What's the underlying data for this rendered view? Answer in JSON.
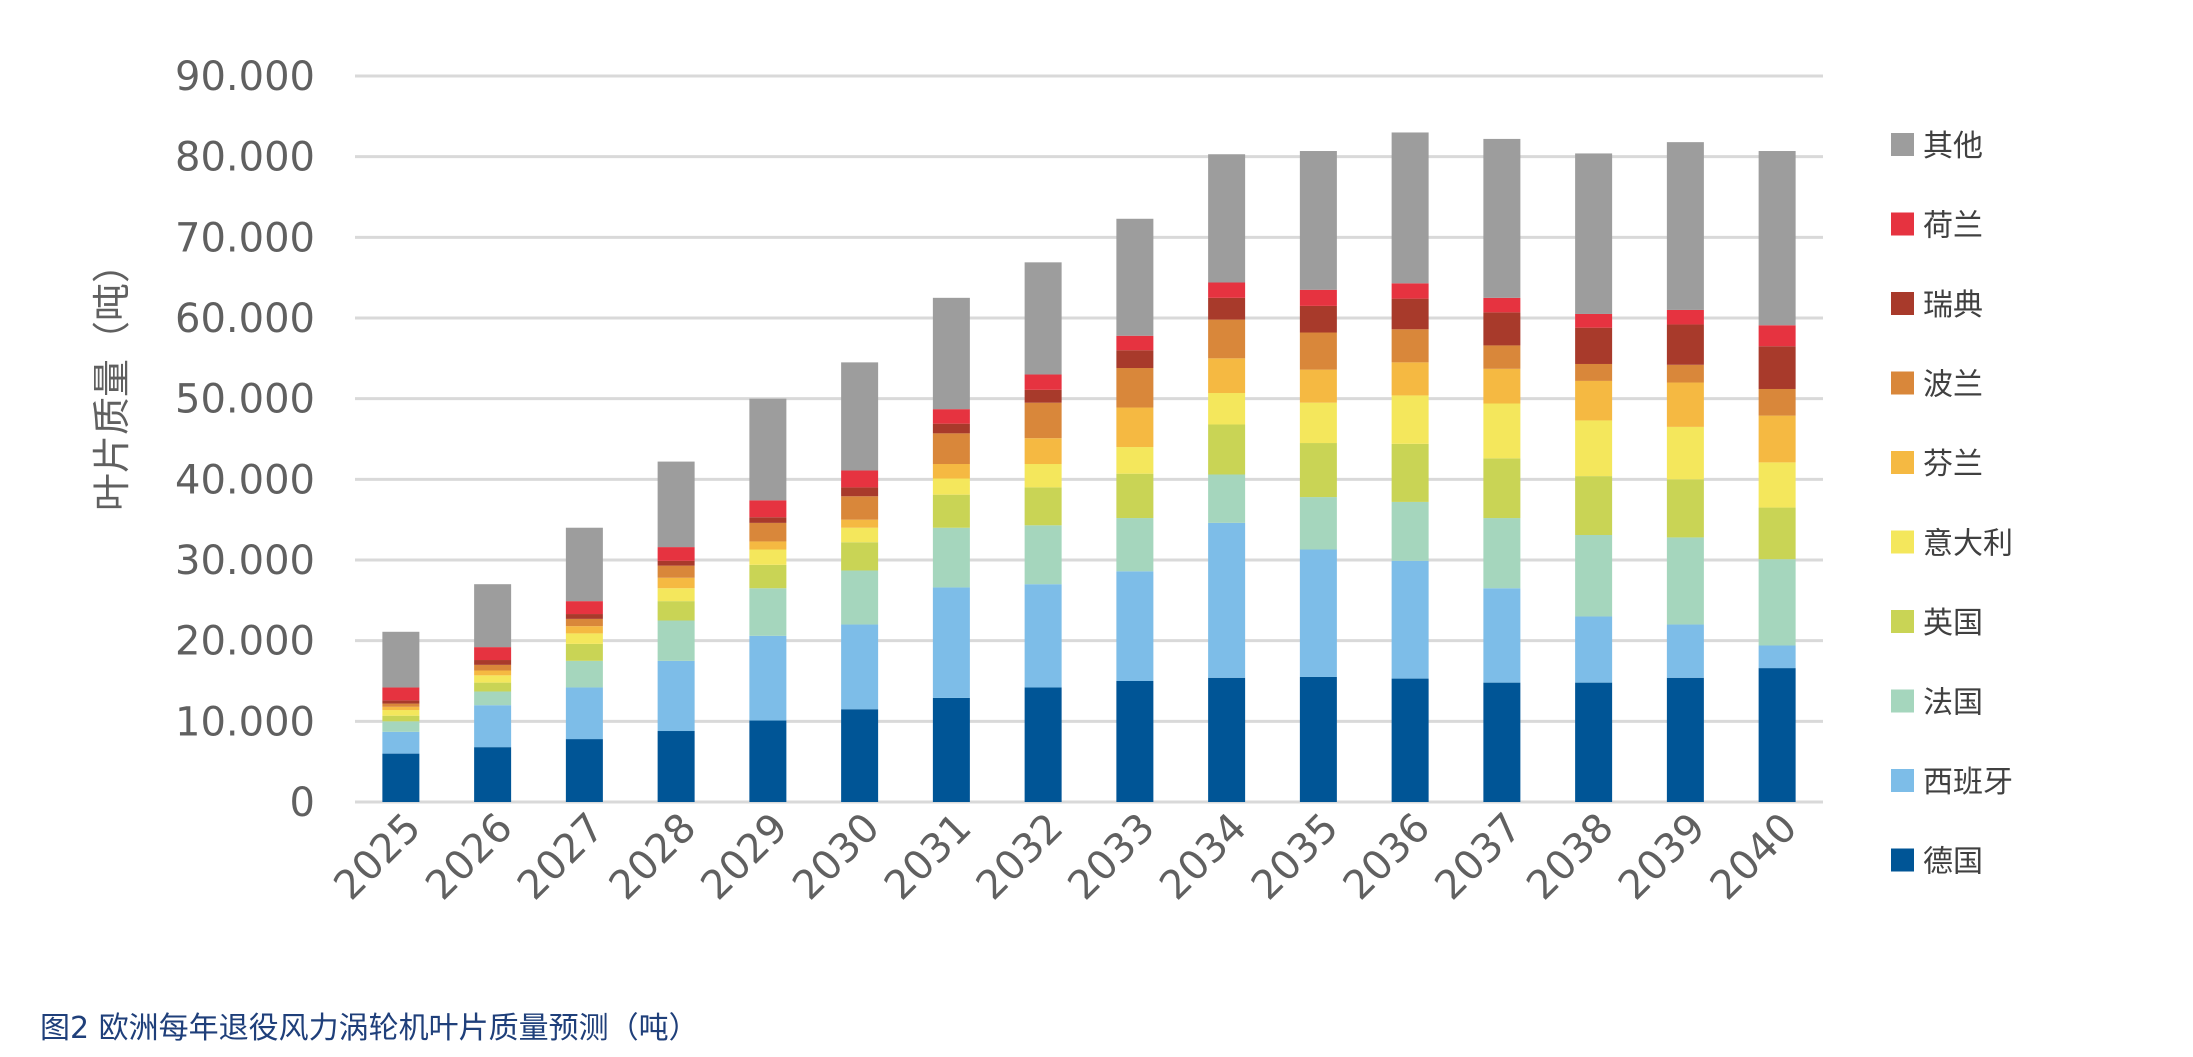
{
  "caption": "图2 欧洲每年退役风力涡轮机叶片质量预测（吨）",
  "chart_data": {
    "type": "bar",
    "stacked": true,
    "title": "",
    "xlabel": "",
    "ylabel": "叶片质量（吨）",
    "ylim": [
      0,
      90000
    ],
    "yticks": [
      0,
      10000,
      20000,
      30000,
      40000,
      50000,
      60000,
      70000,
      80000,
      90000
    ],
    "ytick_labels": [
      "0",
      "10.000",
      "20.000",
      "30.000",
      "40.000",
      "50.000",
      "60.000",
      "70.000",
      "80.000",
      "90.000"
    ],
    "categories": [
      "2025",
      "2026",
      "2027",
      "2028",
      "2029",
      "2030",
      "2031",
      "2032",
      "2033",
      "2034",
      "2035",
      "2036",
      "2037",
      "2038",
      "2039",
      "2040"
    ],
    "legend_position": "right",
    "series": [
      {
        "name": "德国",
        "color": "#005596",
        "values": [
          6000,
          6800,
          7800,
          8800,
          10100,
          11500,
          12900,
          14200,
          15000,
          15400,
          15500,
          15300,
          14800,
          14800,
          15400,
          16600
        ]
      },
      {
        "name": "西班牙",
        "color": "#7dbde8",
        "values": [
          2700,
          5200,
          6400,
          8700,
          10500,
          10500,
          13700,
          12800,
          13600,
          19200,
          15800,
          14600,
          11700,
          8200,
          6600,
          2800
        ]
      },
      {
        "name": "法国",
        "color": "#a5d6bd",
        "values": [
          1300,
          1700,
          3300,
          5000,
          5900,
          6700,
          7400,
          7300,
          6600,
          6000,
          6500,
          7300,
          8700,
          10100,
          10800,
          10700
        ]
      },
      {
        "name": "英国",
        "color": "#c9d455",
        "values": [
          700,
          1100,
          2100,
          2400,
          2900,
          3500,
          4100,
          4700,
          5500,
          6200,
          6700,
          7200,
          7400,
          7300,
          7200,
          6400
        ]
      },
      {
        "name": "意大利",
        "color": "#f4e75c",
        "values": [
          700,
          900,
          1300,
          1600,
          1900,
          1800,
          2000,
          2900,
          3300,
          3900,
          5000,
          6000,
          6800,
          6900,
          6500,
          5600
        ]
      },
      {
        "name": "芬兰",
        "color": "#f5b942",
        "values": [
          400,
          600,
          900,
          1300,
          1000,
          1000,
          1800,
          3200,
          4900,
          4300,
          4100,
          4100,
          4300,
          4900,
          5500,
          5800
        ]
      },
      {
        "name": "波兰",
        "color": "#d9873a",
        "values": [
          400,
          700,
          900,
          1500,
          2300,
          2900,
          3800,
          4400,
          4900,
          4800,
          4600,
          4100,
          2900,
          2100,
          2200,
          3300
        ]
      },
      {
        "name": "瑞典",
        "color": "#a83a2b",
        "values": [
          400,
          600,
          600,
          600,
          700,
          1100,
          1200,
          1600,
          2200,
          2700,
          3300,
          3800,
          4100,
          4500,
          5000,
          5300
        ]
      },
      {
        "name": "荷兰",
        "color": "#e63340",
        "values": [
          1600,
          1600,
          1600,
          1700,
          2100,
          2100,
          1800,
          1900,
          1800,
          1900,
          2000,
          1900,
          1800,
          1700,
          1800,
          2600
        ]
      },
      {
        "name": "其他",
        "color": "#9d9d9d",
        "values": [
          6900,
          7800,
          9100,
          10600,
          12600,
          13400,
          13800,
          13900,
          14500,
          15900,
          17200,
          18700,
          19700,
          19900,
          20800,
          21600
        ]
      }
    ]
  }
}
